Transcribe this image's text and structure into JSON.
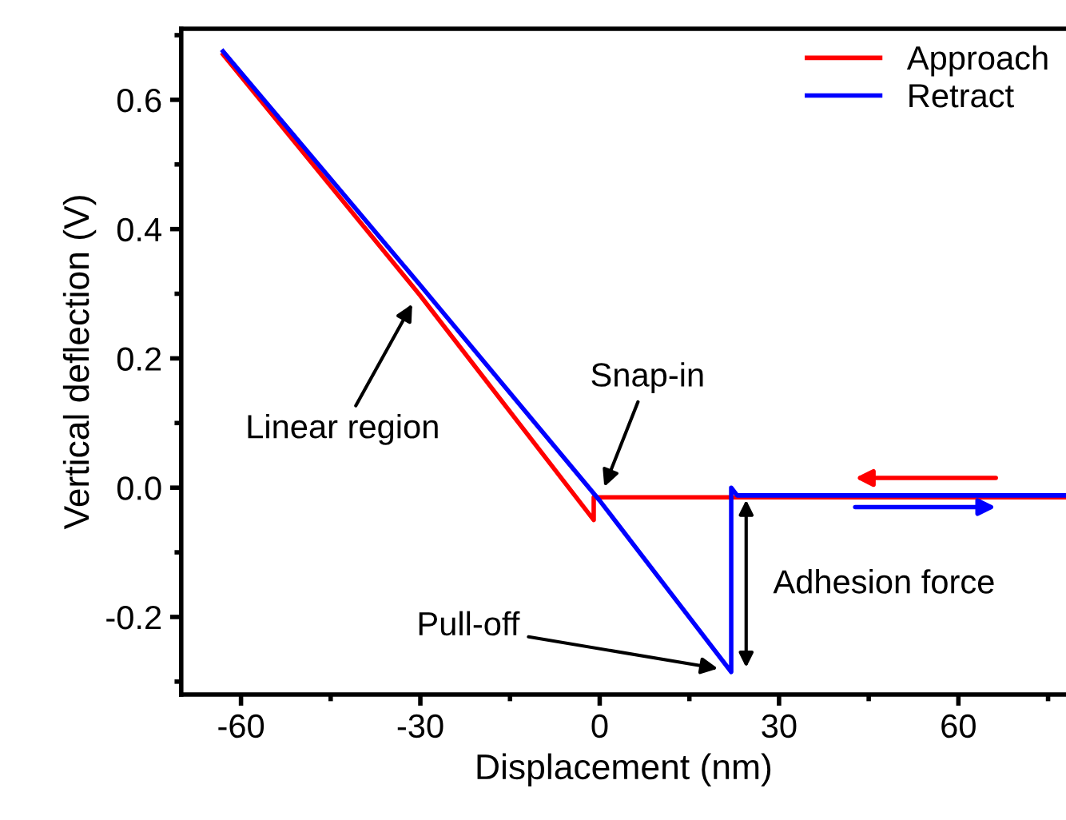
{
  "chart_data": {
    "type": "line",
    "xlabel": "Displacement (nm)",
    "ylabel": "Vertical deflection (V)",
    "xlim": [
      -70,
      78
    ],
    "xticks": [
      -60,
      -30,
      0,
      30,
      60
    ],
    "ylim": [
      -0.32,
      0.71
    ],
    "yticks": [
      {
        "value": -0.2,
        "label": "-0.2"
      },
      {
        "value": 0.0,
        "label": "0.0"
      },
      {
        "value": 0.2,
        "label": "0.2"
      },
      {
        "value": 0.4,
        "label": "0.4"
      },
      {
        "value": 0.6,
        "label": "0.6"
      }
    ],
    "grid": false,
    "legend": "top right",
    "marker": "none",
    "line_style": "solid",
    "series": [
      {
        "name": "Approach",
        "color": "#ff0000",
        "x": [
          -63,
          -30,
          -1,
          -1,
          78
        ],
        "values": [
          0.67,
          0.297,
          -0.05,
          -0.015,
          -0.015
        ]
      },
      {
        "name": "Retract",
        "color": "#0000ff",
        "x": [
          -63,
          -30,
          0,
          22,
          22,
          23,
          78
        ],
        "values": [
          0.675,
          0.313,
          -0.02,
          -0.285,
          0.0,
          -0.012,
          -0.012
        ]
      }
    ],
    "annotations": [
      {
        "text": "Linear region",
        "x": -31,
        "y": 0.29
      },
      "Snap-in",
      "Pull-off",
      "Adhesion force"
    ]
  }
}
